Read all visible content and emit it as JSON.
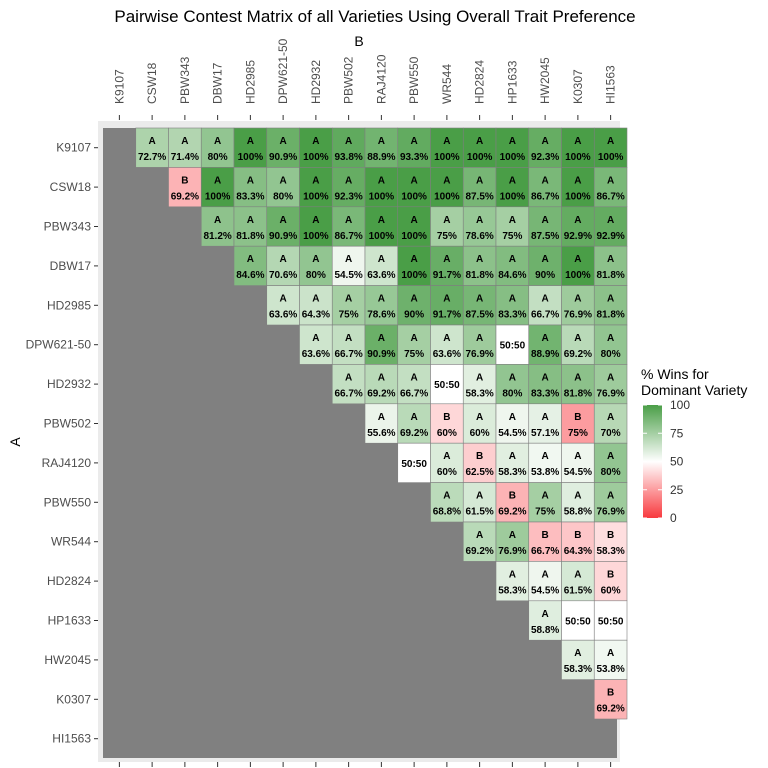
{
  "chart_data": {
    "type": "heatmap",
    "title": "Pairwise Contest Matrix of all Varieties Using Overall Trait Preference",
    "xlabel": "B",
    "ylabel": "A",
    "varieties": [
      "K9107",
      "CSW18",
      "PBW343",
      "DBW17",
      "HD2985",
      "DPW621-50",
      "HD2932",
      "PBW502",
      "RAJ4120",
      "PBW550",
      "WR544",
      "HD2824",
      "HP1633",
      "HW2045",
      "K0307",
      "HI1563"
    ],
    "legend": {
      "title_line1": "% Wins for",
      "title_line2": "Dominant Variety",
      "ticks": [
        "0",
        "25",
        "50",
        "75",
        "100"
      ],
      "range": [
        0,
        100
      ],
      "colors": {
        "low": "#f8393e",
        "mid": "#ffffff",
        "high": "#4a9e47"
      }
    },
    "tie_label": "50:50",
    "rows": [
      {
        "row": "K9107",
        "cells": [
          {
            "col": "CSW18",
            "winner": "A",
            "value": 72.7,
            "label": "72.7%"
          },
          {
            "col": "PBW343",
            "winner": "A",
            "value": 71.4,
            "label": "71.4%"
          },
          {
            "col": "DBW17",
            "winner": "A",
            "value": 80,
            "label": "80%"
          },
          {
            "col": "HD2985",
            "winner": "A",
            "value": 100,
            "label": "100%"
          },
          {
            "col": "DPW621-50",
            "winner": "A",
            "value": 90.9,
            "label": "90.9%"
          },
          {
            "col": "HD2932",
            "winner": "A",
            "value": 100,
            "label": "100%"
          },
          {
            "col": "PBW502",
            "winner": "A",
            "value": 93.8,
            "label": "93.8%"
          },
          {
            "col": "RAJ4120",
            "winner": "A",
            "value": 88.9,
            "label": "88.9%"
          },
          {
            "col": "PBW550",
            "winner": "A",
            "value": 93.3,
            "label": "93.3%"
          },
          {
            "col": "WR544",
            "winner": "A",
            "value": 100,
            "label": "100%"
          },
          {
            "col": "HD2824",
            "winner": "A",
            "value": 100,
            "label": "100%"
          },
          {
            "col": "HP1633",
            "winner": "A",
            "value": 100,
            "label": "100%"
          },
          {
            "col": "HW2045",
            "winner": "A",
            "value": 92.3,
            "label": "92.3%"
          },
          {
            "col": "K0307",
            "winner": "A",
            "value": 100,
            "label": "100%"
          },
          {
            "col": "HI1563",
            "winner": "A",
            "value": 100,
            "label": "100%"
          }
        ]
      },
      {
        "row": "CSW18",
        "cells": [
          {
            "col": "PBW343",
            "winner": "B",
            "value": 69.2,
            "label": "69.2%"
          },
          {
            "col": "DBW17",
            "winner": "A",
            "value": 100,
            "label": "100%"
          },
          {
            "col": "HD2985",
            "winner": "A",
            "value": 83.3,
            "label": "83.3%"
          },
          {
            "col": "DPW621-50",
            "winner": "A",
            "value": 80,
            "label": "80%"
          },
          {
            "col": "HD2932",
            "winner": "A",
            "value": 100,
            "label": "100%"
          },
          {
            "col": "PBW502",
            "winner": "A",
            "value": 92.3,
            "label": "92.3%"
          },
          {
            "col": "RAJ4120",
            "winner": "A",
            "value": 100,
            "label": "100%"
          },
          {
            "col": "PBW550",
            "winner": "A",
            "value": 100,
            "label": "100%"
          },
          {
            "col": "WR544",
            "winner": "A",
            "value": 100,
            "label": "100%"
          },
          {
            "col": "HD2824",
            "winner": "A",
            "value": 87.5,
            "label": "87.5%"
          },
          {
            "col": "HP1633",
            "winner": "A",
            "value": 100,
            "label": "100%"
          },
          {
            "col": "HW2045",
            "winner": "A",
            "value": 86.7,
            "label": "86.7%"
          },
          {
            "col": "K0307",
            "winner": "A",
            "value": 100,
            "label": "100%"
          },
          {
            "col": "HI1563",
            "winner": "A",
            "value": 86.7,
            "label": "86.7%"
          }
        ]
      },
      {
        "row": "PBW343",
        "cells": [
          {
            "col": "DBW17",
            "winner": "A",
            "value": 81.2,
            "label": "81.2%"
          },
          {
            "col": "HD2985",
            "winner": "A",
            "value": 81.8,
            "label": "81.8%"
          },
          {
            "col": "DPW621-50",
            "winner": "A",
            "value": 90.9,
            "label": "90.9%"
          },
          {
            "col": "HD2932",
            "winner": "A",
            "value": 100,
            "label": "100%"
          },
          {
            "col": "PBW502",
            "winner": "A",
            "value": 86.7,
            "label": "86.7%"
          },
          {
            "col": "RAJ4120",
            "winner": "A",
            "value": 100,
            "label": "100%"
          },
          {
            "col": "PBW550",
            "winner": "A",
            "value": 100,
            "label": "100%"
          },
          {
            "col": "WR544",
            "winner": "A",
            "value": 75,
            "label": "75%"
          },
          {
            "col": "HD2824",
            "winner": "A",
            "value": 78.6,
            "label": "78.6%"
          },
          {
            "col": "HP1633",
            "winner": "A",
            "value": 75,
            "label": "75%"
          },
          {
            "col": "HW2045",
            "winner": "A",
            "value": 87.5,
            "label": "87.5%"
          },
          {
            "col": "K0307",
            "winner": "A",
            "value": 92.9,
            "label": "92.9%"
          },
          {
            "col": "HI1563",
            "winner": "A",
            "value": 92.9,
            "label": "92.9%"
          }
        ]
      },
      {
        "row": "DBW17",
        "cells": [
          {
            "col": "HD2985",
            "winner": "A",
            "value": 84.6,
            "label": "84.6%"
          },
          {
            "col": "DPW621-50",
            "winner": "A",
            "value": 70.6,
            "label": "70.6%"
          },
          {
            "col": "HD2932",
            "winner": "A",
            "value": 80,
            "label": "80%"
          },
          {
            "col": "PBW502",
            "winner": "A",
            "value": 54.5,
            "label": "54.5%"
          },
          {
            "col": "RAJ4120",
            "winner": "A",
            "value": 63.6,
            "label": "63.6%"
          },
          {
            "col": "PBW550",
            "winner": "A",
            "value": 100,
            "label": "100%"
          },
          {
            "col": "WR544",
            "winner": "A",
            "value": 91.7,
            "label": "91.7%"
          },
          {
            "col": "HD2824",
            "winner": "A",
            "value": 81.8,
            "label": "81.8%"
          },
          {
            "col": "HP1633",
            "winner": "A",
            "value": 84.6,
            "label": "84.6%"
          },
          {
            "col": "HW2045",
            "winner": "A",
            "value": 90,
            "label": "90%"
          },
          {
            "col": "K0307",
            "winner": "A",
            "value": 100,
            "label": "100%"
          },
          {
            "col": "HI1563",
            "winner": "A",
            "value": 81.8,
            "label": "81.8%"
          }
        ]
      },
      {
        "row": "HD2985",
        "cells": [
          {
            "col": "DPW621-50",
            "winner": "A",
            "value": 63.6,
            "label": "63.6%"
          },
          {
            "col": "HD2932",
            "winner": "A",
            "value": 64.3,
            "label": "64.3%"
          },
          {
            "col": "PBW502",
            "winner": "A",
            "value": 75,
            "label": "75%"
          },
          {
            "col": "RAJ4120",
            "winner": "A",
            "value": 78.6,
            "label": "78.6%"
          },
          {
            "col": "PBW550",
            "winner": "A",
            "value": 90,
            "label": "90%"
          },
          {
            "col": "WR544",
            "winner": "A",
            "value": 91.7,
            "label": "91.7%"
          },
          {
            "col": "HD2824",
            "winner": "A",
            "value": 87.5,
            "label": "87.5%"
          },
          {
            "col": "HP1633",
            "winner": "A",
            "value": 83.3,
            "label": "83.3%"
          },
          {
            "col": "HW2045",
            "winner": "A",
            "value": 66.7,
            "label": "66.7%"
          },
          {
            "col": "K0307",
            "winner": "A",
            "value": 76.9,
            "label": "76.9%"
          },
          {
            "col": "HI1563",
            "winner": "A",
            "value": 81.8,
            "label": "81.8%"
          }
        ]
      },
      {
        "row": "DPW621-50",
        "cells": [
          {
            "col": "HD2932",
            "winner": "A",
            "value": 63.6,
            "label": "63.6%"
          },
          {
            "col": "PBW502",
            "winner": "A",
            "value": 66.7,
            "label": "66.7%"
          },
          {
            "col": "RAJ4120",
            "winner": "A",
            "value": 90.9,
            "label": "90.9%"
          },
          {
            "col": "PBW550",
            "winner": "A",
            "value": 75,
            "label": "75%"
          },
          {
            "col": "WR544",
            "winner": "A",
            "value": 63.6,
            "label": "63.6%"
          },
          {
            "col": "HD2824",
            "winner": "A",
            "value": 76.9,
            "label": "76.9%"
          },
          {
            "col": "HP1633",
            "winner": "tie",
            "value": 50,
            "label": "50:50"
          },
          {
            "col": "HW2045",
            "winner": "A",
            "value": 88.9,
            "label": "88.9%"
          },
          {
            "col": "K0307",
            "winner": "A",
            "value": 69.2,
            "label": "69.2%"
          },
          {
            "col": "HI1563",
            "winner": "A",
            "value": 80,
            "label": "80%"
          }
        ]
      },
      {
        "row": "HD2932",
        "cells": [
          {
            "col": "PBW502",
            "winner": "A",
            "value": 66.7,
            "label": "66.7%"
          },
          {
            "col": "RAJ4120",
            "winner": "A",
            "value": 69.2,
            "label": "69.2%"
          },
          {
            "col": "PBW550",
            "winner": "A",
            "value": 66.7,
            "label": "66.7%"
          },
          {
            "col": "WR544",
            "winner": "tie",
            "value": 50,
            "label": "50:50"
          },
          {
            "col": "HD2824",
            "winner": "A",
            "value": 58.3,
            "label": "58.3%"
          },
          {
            "col": "HP1633",
            "winner": "A",
            "value": 80,
            "label": "80%"
          },
          {
            "col": "HW2045",
            "winner": "A",
            "value": 83.3,
            "label": "83.3%"
          },
          {
            "col": "K0307",
            "winner": "A",
            "value": 81.8,
            "label": "81.8%"
          },
          {
            "col": "HI1563",
            "winner": "A",
            "value": 76.9,
            "label": "76.9%"
          }
        ]
      },
      {
        "row": "PBW502",
        "cells": [
          {
            "col": "RAJ4120",
            "winner": "A",
            "value": 55.6,
            "label": "55.6%"
          },
          {
            "col": "PBW550",
            "winner": "A",
            "value": 69.2,
            "label": "69.2%"
          },
          {
            "col": "WR544",
            "winner": "B",
            "value": 60,
            "label": "60%"
          },
          {
            "col": "HD2824",
            "winner": "A",
            "value": 60,
            "label": "60%"
          },
          {
            "col": "HP1633",
            "winner": "A",
            "value": 54.5,
            "label": "54.5%"
          },
          {
            "col": "HW2045",
            "winner": "A",
            "value": 57.1,
            "label": "57.1%"
          },
          {
            "col": "K0307",
            "winner": "B",
            "value": 75,
            "label": "75%"
          },
          {
            "col": "HI1563",
            "winner": "A",
            "value": 70,
            "label": "70%"
          }
        ]
      },
      {
        "row": "RAJ4120",
        "cells": [
          {
            "col": "PBW550",
            "winner": "tie",
            "value": 50,
            "label": "50:50"
          },
          {
            "col": "WR544",
            "winner": "A",
            "value": 60,
            "label": "60%"
          },
          {
            "col": "HD2824",
            "winner": "B",
            "value": 62.5,
            "label": "62.5%"
          },
          {
            "col": "HP1633",
            "winner": "A",
            "value": 58.3,
            "label": "58.3%"
          },
          {
            "col": "HW2045",
            "winner": "A",
            "value": 53.8,
            "label": "53.8%"
          },
          {
            "col": "K0307",
            "winner": "A",
            "value": 54.5,
            "label": "54.5%"
          },
          {
            "col": "HI1563",
            "winner": "A",
            "value": 80,
            "label": "80%"
          }
        ]
      },
      {
        "row": "PBW550",
        "cells": [
          {
            "col": "WR544",
            "winner": "A",
            "value": 68.8,
            "label": "68.8%"
          },
          {
            "col": "HD2824",
            "winner": "A",
            "value": 61.5,
            "label": "61.5%"
          },
          {
            "col": "HP1633",
            "winner": "B",
            "value": 69.2,
            "label": "69.2%"
          },
          {
            "col": "HW2045",
            "winner": "A",
            "value": 75,
            "label": "75%"
          },
          {
            "col": "K0307",
            "winner": "A",
            "value": 58.8,
            "label": "58.8%"
          },
          {
            "col": "HI1563",
            "winner": "A",
            "value": 76.9,
            "label": "76.9%"
          }
        ]
      },
      {
        "row": "WR544",
        "cells": [
          {
            "col": "HD2824",
            "winner": "A",
            "value": 69.2,
            "label": "69.2%"
          },
          {
            "col": "HP1633",
            "winner": "A",
            "value": 76.9,
            "label": "76.9%"
          },
          {
            "col": "HW2045",
            "winner": "B",
            "value": 66.7,
            "label": "66.7%"
          },
          {
            "col": "K0307",
            "winner": "B",
            "value": 64.3,
            "label": "64.3%"
          },
          {
            "col": "HI1563",
            "winner": "B",
            "value": 58.3,
            "label": "58.3%"
          }
        ]
      },
      {
        "row": "HD2824",
        "cells": [
          {
            "col": "HP1633",
            "winner": "A",
            "value": 58.3,
            "label": "58.3%"
          },
          {
            "col": "HW2045",
            "winner": "A",
            "value": 54.5,
            "label": "54.5%"
          },
          {
            "col": "K0307",
            "winner": "A",
            "value": 61.5,
            "label": "61.5%"
          },
          {
            "col": "HI1563",
            "winner": "B",
            "value": 60,
            "label": "60%"
          }
        ]
      },
      {
        "row": "HP1633",
        "cells": [
          {
            "col": "HW2045",
            "winner": "A",
            "value": 58.8,
            "label": "58.8%"
          },
          {
            "col": "K0307",
            "winner": "tie",
            "value": 50,
            "label": "50:50"
          },
          {
            "col": "HI1563",
            "winner": "tie",
            "value": 50,
            "label": "50:50"
          }
        ]
      },
      {
        "row": "HW2045",
        "cells": [
          {
            "col": "K0307",
            "winner": "A",
            "value": 58.3,
            "label": "58.3%"
          },
          {
            "col": "HI1563",
            "winner": "A",
            "value": 53.8,
            "label": "53.8%"
          }
        ]
      },
      {
        "row": "K0307",
        "cells": [
          {
            "col": "HI1563",
            "winner": "B",
            "value": 69.2,
            "label": "69.2%"
          }
        ]
      },
      {
        "row": "HI1563",
        "cells": []
      }
    ]
  }
}
